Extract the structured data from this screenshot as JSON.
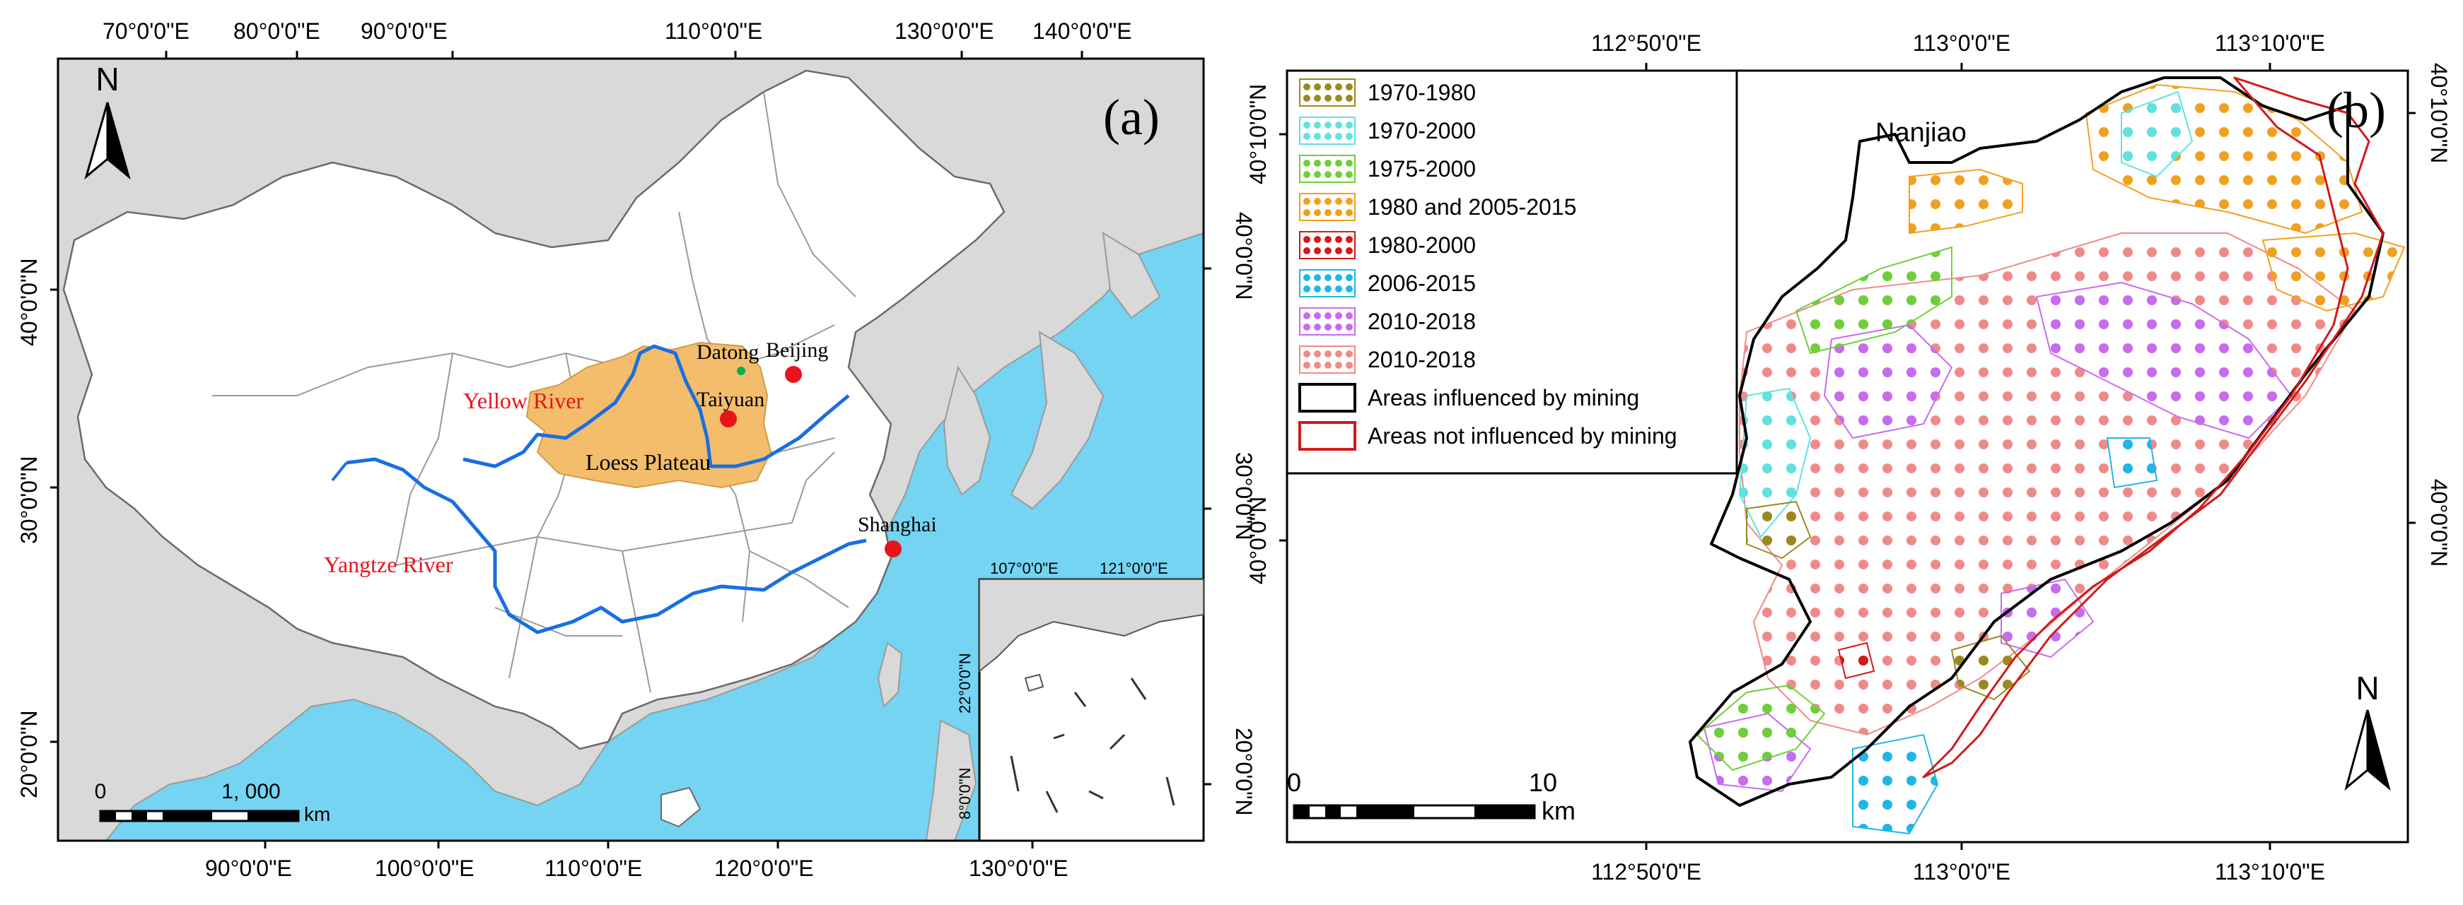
{
  "panel_a": {
    "letter": "(a)",
    "north": "N",
    "top_ticks": [
      "70°0'0\"E",
      "80°0'0\"E",
      "90°0'0\"E",
      "110°0'0\"E",
      "130°0'0\"E",
      "140°0'0\"E"
    ],
    "bottom_ticks": [
      "90°0'0\"E",
      "100°0'0\"E",
      "110°0'0\"E",
      "120°0'0\"E",
      "130°0'0\"E"
    ],
    "left_ticks": [
      "40°0'0\"N",
      "30°0'0\"N",
      "20°0'0\"N"
    ],
    "right_ticks": [
      "40°0'0\"N",
      "30°0'0\"N",
      "20°0'0\"N"
    ],
    "places": {
      "datong": "Datong",
      "beijing": "Beijing",
      "taiyuan": "Taiyuan",
      "shanghai": "Shanghai",
      "yellow_river": "Yellow River",
      "loess_plateau": "Loess Plateau",
      "yangtze_river": "Yangtze River"
    },
    "scale": {
      "zero": "0",
      "value": "1, 000",
      "unit": "km"
    },
    "inset": {
      "top_ticks": [
        "107°0'0\"E",
        "121°0'0\"E"
      ],
      "left_ticks": [
        "22°0'0\"N",
        "8°0'0\"N"
      ]
    }
  },
  "panel_b": {
    "letter": "(b)",
    "north": "N",
    "top_ticks": [
      "112°50'0\"E",
      "113°0'0\"E",
      "113°10'0\"E"
    ],
    "bottom_ticks": [
      "112°50'0\"E",
      "113°0'0\"E",
      "113°10'0\"E"
    ],
    "left_ticks": [
      "40°10'0\"N",
      "40°0'0\"N"
    ],
    "right_ticks": [
      "40°10'0\"N",
      "40°0'0\"N"
    ],
    "place": "Nanjiao",
    "scale": {
      "zero": "0",
      "value": "10",
      "unit": "km"
    },
    "legend": [
      {
        "label": "1970-1980",
        "color": "#9a8a1e",
        "kind": "dots"
      },
      {
        "label": "1970-2000",
        "color": "#5fe3e0",
        "kind": "dots"
      },
      {
        "label": "1975-2000",
        "color": "#6fcf3a",
        "kind": "dots"
      },
      {
        "label": "1980 and 2005-2015",
        "color": "#f0a020",
        "kind": "dots"
      },
      {
        "label": "1980-2000",
        "color": "#d21a1a",
        "kind": "dots"
      },
      {
        "label": "2006-2015",
        "color": "#1fb6e8",
        "kind": "dots"
      },
      {
        "label": "2010-2018",
        "color": "#c76bf0",
        "kind": "dots"
      },
      {
        "label": "2010-2018",
        "color": "#f08a8a",
        "kind": "dots"
      },
      {
        "label": "Areas influenced by mining",
        "color": "#000000",
        "kind": "line"
      },
      {
        "label": "Areas not influenced by mining",
        "color": "#d21a1a",
        "kind": "line"
      }
    ]
  },
  "colors": {
    "sea": "#74d4f2",
    "land_outside": "#d9d9d9",
    "china": "#ffffff",
    "loess": "#f3bd6c",
    "river": "#1a6fe0",
    "city": "#e8141b",
    "red_label": "#e8141b"
  }
}
